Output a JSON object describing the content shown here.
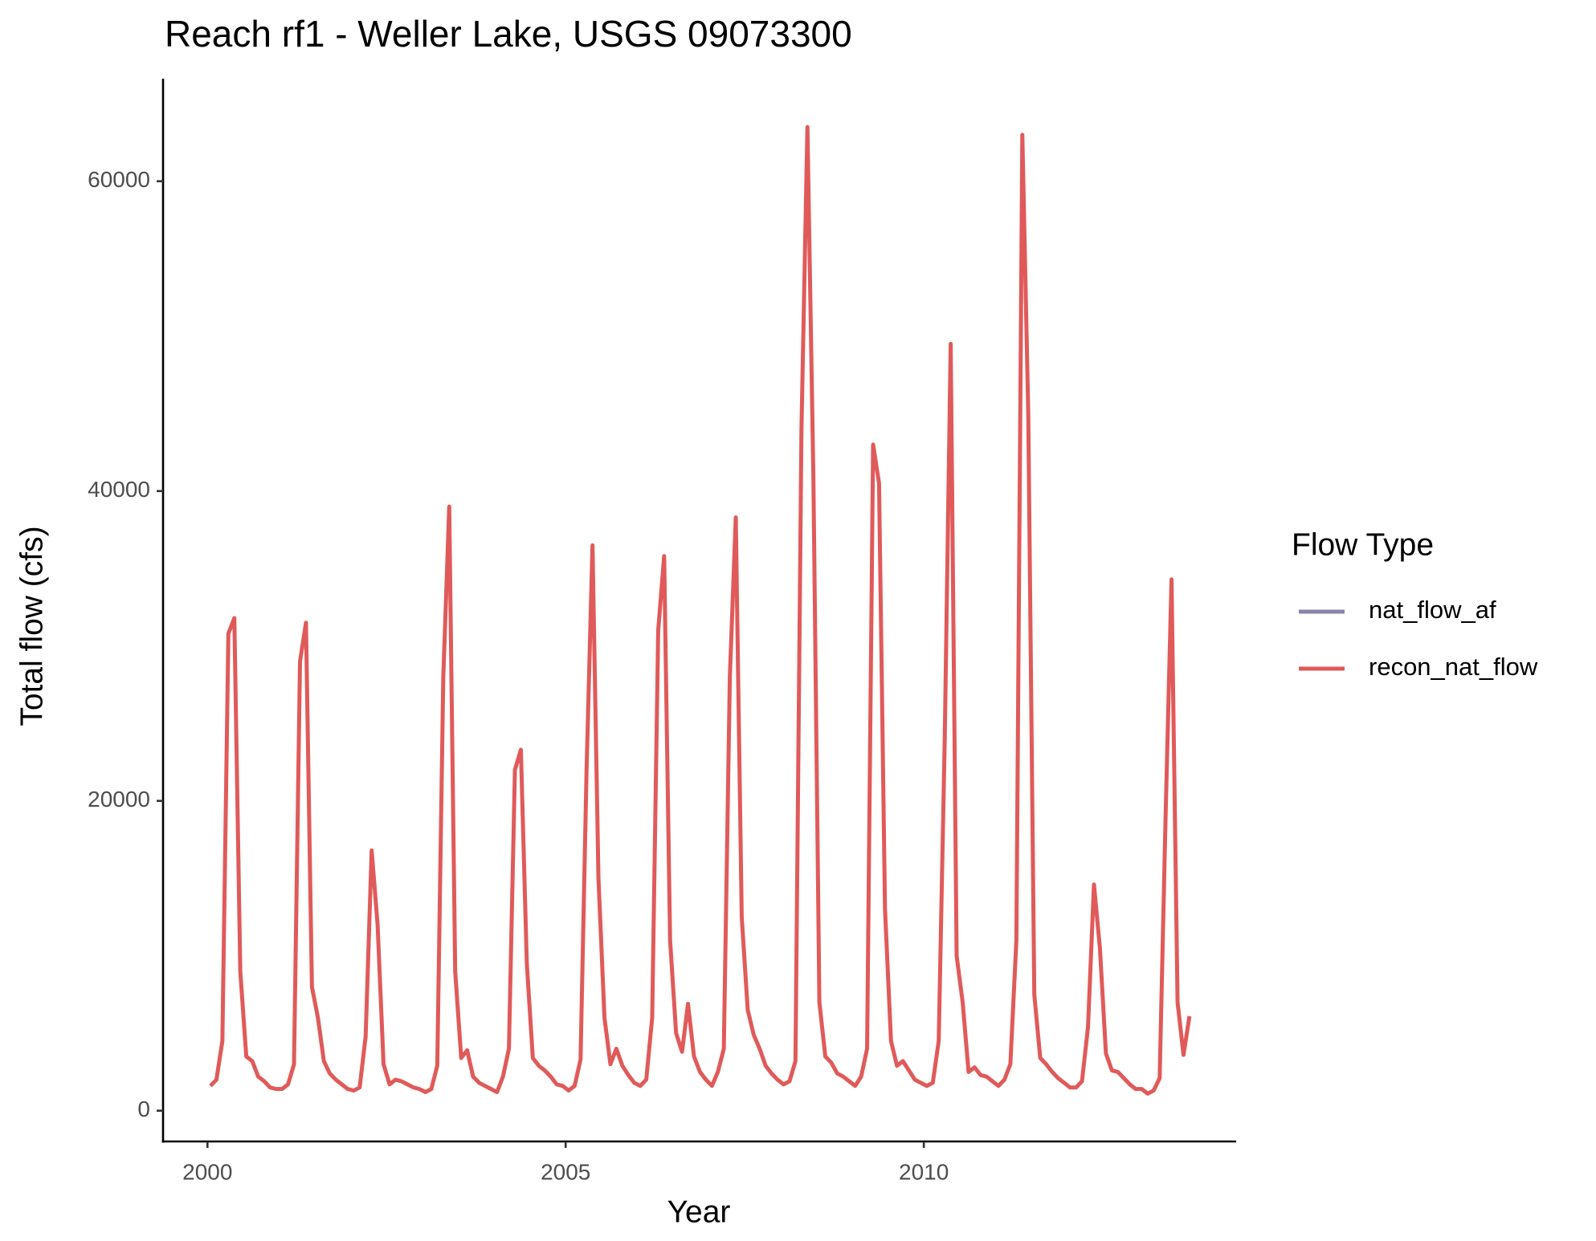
{
  "chart_data": {
    "type": "line",
    "title": "Reach rf1 - Weller Lake, USGS 09073300",
    "x_label": "Year",
    "y_label": "Total flow (cfs)",
    "legend_title": "Flow Type",
    "legend_position": "right",
    "grid": false,
    "xlim": [
      1999.38,
      2014.36
    ],
    "ylim": [
      -1987,
      66622
    ],
    "xticks": [
      2000,
      2005,
      2010
    ],
    "yticks": [
      0,
      20000,
      40000,
      60000
    ],
    "x": [
      2000.042,
      2000.125,
      2000.208,
      2000.292,
      2000.375,
      2000.458,
      2000.542,
      2000.625,
      2000.708,
      2000.792,
      2000.875,
      2000.958,
      2001.042,
      2001.125,
      2001.208,
      2001.292,
      2001.375,
      2001.458,
      2001.542,
      2001.625,
      2001.708,
      2001.792,
      2001.875,
      2001.958,
      2002.042,
      2002.125,
      2002.208,
      2002.292,
      2002.375,
      2002.458,
      2002.542,
      2002.625,
      2002.708,
      2002.792,
      2002.875,
      2002.958,
      2003.042,
      2003.125,
      2003.208,
      2003.292,
      2003.375,
      2003.458,
      2003.542,
      2003.625,
      2003.708,
      2003.792,
      2003.875,
      2003.958,
      2004.042,
      2004.125,
      2004.208,
      2004.292,
      2004.375,
      2004.458,
      2004.542,
      2004.625,
      2004.708,
      2004.792,
      2004.875,
      2004.958,
      2005.042,
      2005.125,
      2005.208,
      2005.292,
      2005.375,
      2005.458,
      2005.542,
      2005.625,
      2005.708,
      2005.792,
      2005.875,
      2005.958,
      2006.042,
      2006.125,
      2006.208,
      2006.292,
      2006.375,
      2006.458,
      2006.542,
      2006.625,
      2006.708,
      2006.792,
      2006.875,
      2006.958,
      2007.042,
      2007.125,
      2007.208,
      2007.292,
      2007.375,
      2007.458,
      2007.542,
      2007.625,
      2007.708,
      2007.792,
      2007.875,
      2007.958,
      2008.042,
      2008.125,
      2008.208,
      2008.292,
      2008.375,
      2008.458,
      2008.542,
      2008.625,
      2008.708,
      2008.792,
      2008.875,
      2008.958,
      2009.042,
      2009.125,
      2009.208,
      2009.292,
      2009.375,
      2009.458,
      2009.542,
      2009.625,
      2009.708,
      2009.792,
      2009.875,
      2009.958,
      2010.042,
      2010.125,
      2010.208,
      2010.292,
      2010.375,
      2010.458,
      2010.542,
      2010.625,
      2010.708,
      2010.792,
      2010.875,
      2010.958,
      2011.042,
      2011.125,
      2011.208,
      2011.292,
      2011.375,
      2011.458,
      2011.542,
      2011.625,
      2011.708,
      2011.792,
      2011.875,
      2011.958,
      2012.042,
      2012.125,
      2012.208,
      2012.292,
      2012.375,
      2012.458,
      2012.542,
      2012.625,
      2012.708,
      2012.792,
      2012.875,
      2012.958,
      2013.042,
      2013.125,
      2013.208,
      2013.292,
      2013.375,
      2013.458,
      2013.542,
      2013.625,
      2013.708
    ],
    "series": [
      {
        "name": "nat_flow_af",
        "color": "#8a84a8"
      },
      {
        "name": "recon_nat_flow",
        "color": "#e05a5a",
        "values": [
          1600,
          2000,
          4500,
          30800,
          31800,
          9000,
          3500,
          3200,
          2200,
          1900,
          1500,
          1400,
          1400,
          1700,
          3000,
          29000,
          31500,
          8000,
          6000,
          3200,
          2400,
          2000,
          1700,
          1400,
          1300,
          1500,
          4800,
          16800,
          12000,
          3000,
          1700,
          2000,
          1900,
          1700,
          1500,
          1400,
          1200,
          1400,
          2900,
          28000,
          39000,
          9000,
          3400,
          3900,
          2200,
          1800,
          1600,
          1400,
          1200,
          2200,
          4000,
          22000,
          23300,
          9500,
          3400,
          2900,
          2600,
          2200,
          1700,
          1600,
          1300,
          1600,
          3300,
          22000,
          36500,
          15000,
          6000,
          3000,
          4000,
          2900,
          2300,
          1800,
          1600,
          2000,
          6000,
          31000,
          35800,
          11000,
          5000,
          3800,
          6900,
          3500,
          2500,
          2000,
          1600,
          2500,
          4000,
          28000,
          38300,
          12500,
          6500,
          4900,
          4000,
          2900,
          2400,
          2000,
          1700,
          1900,
          3200,
          44000,
          63500,
          41000,
          7000,
          3500,
          3100,
          2400,
          2200,
          1900,
          1600,
          2200,
          4000,
          43000,
          40500,
          13000,
          4500,
          2900,
          3200,
          2600,
          2000,
          1800,
          1600,
          1800,
          4500,
          24000,
          49500,
          10000,
          7000,
          2500,
          2800,
          2300,
          2200,
          1900,
          1600,
          2000,
          3000,
          11000,
          63000,
          45000,
          7500,
          3400,
          3000,
          2500,
          2100,
          1800,
          1500,
          1500,
          1900,
          5400,
          14600,
          10500,
          3700,
          2600,
          2500,
          2100,
          1700,
          1400,
          1400,
          1100,
          1300,
          2100,
          19000,
          34300,
          7000,
          3600,
          6100
        ]
      }
    ]
  }
}
